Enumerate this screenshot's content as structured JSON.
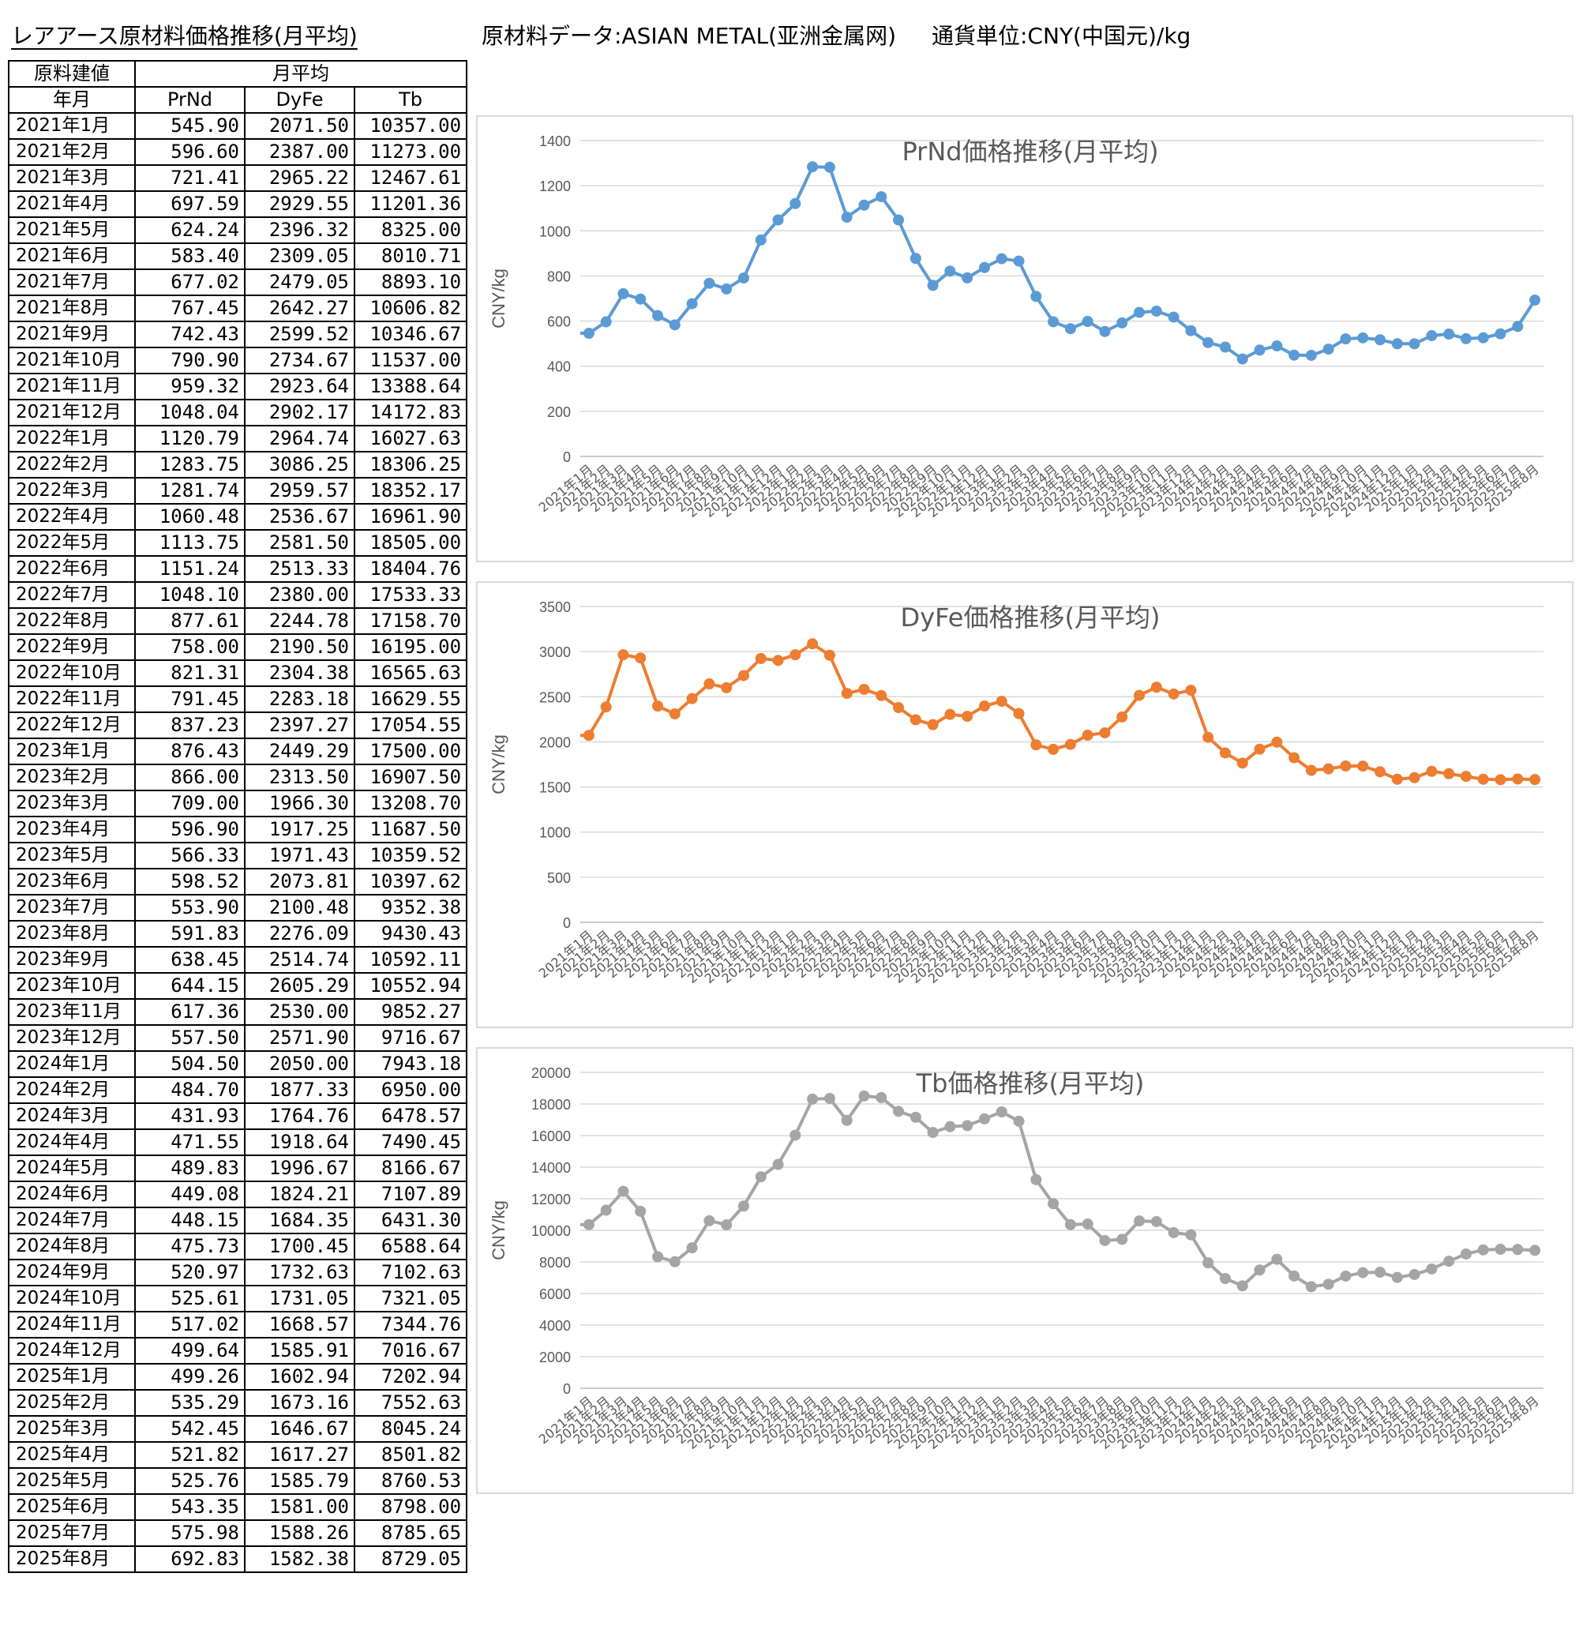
{
  "header": {
    "title": "レアアース原材料価格推移(月平均)",
    "source": "原材料データ:ASIAN METAL(亚洲金属网)",
    "currency": "通貨単位:CNY(中国元)/kg"
  },
  "table": {
    "corner_line1": "原料建値",
    "corner_line2": "年月",
    "group_header": "月平均",
    "columns": [
      "PrNd",
      "DyFe",
      "Tb"
    ],
    "rows": [
      [
        "2021年1月",
        "545.90",
        "2071.50",
        "10357.00"
      ],
      [
        "2021年2月",
        "596.60",
        "2387.00",
        "11273.00"
      ],
      [
        "2021年3月",
        "721.41",
        "2965.22",
        "12467.61"
      ],
      [
        "2021年4月",
        "697.59",
        "2929.55",
        "11201.36"
      ],
      [
        "2021年5月",
        "624.24",
        "2396.32",
        "8325.00"
      ],
      [
        "2021年6月",
        "583.40",
        "2309.05",
        "8010.71"
      ],
      [
        "2021年7月",
        "677.02",
        "2479.05",
        "8893.10"
      ],
      [
        "2021年8月",
        "767.45",
        "2642.27",
        "10606.82"
      ],
      [
        "2021年9月",
        "742.43",
        "2599.52",
        "10346.67"
      ],
      [
        "2021年10月",
        "790.90",
        "2734.67",
        "11537.00"
      ],
      [
        "2021年11月",
        "959.32",
        "2923.64",
        "13388.64"
      ],
      [
        "2021年12月",
        "1048.04",
        "2902.17",
        "14172.83"
      ],
      [
        "2022年1月",
        "1120.79",
        "2964.74",
        "16027.63"
      ],
      [
        "2022年2月",
        "1283.75",
        "3086.25",
        "18306.25"
      ],
      [
        "2022年3月",
        "1281.74",
        "2959.57",
        "18352.17"
      ],
      [
        "2022年4月",
        "1060.48",
        "2536.67",
        "16961.90"
      ],
      [
        "2022年5月",
        "1113.75",
        "2581.50",
        "18505.00"
      ],
      [
        "2022年6月",
        "1151.24",
        "2513.33",
        "18404.76"
      ],
      [
        "2022年7月",
        "1048.10",
        "2380.00",
        "17533.33"
      ],
      [
        "2022年8月",
        "877.61",
        "2244.78",
        "17158.70"
      ],
      [
        "2022年9月",
        "758.00",
        "2190.50",
        "16195.00"
      ],
      [
        "2022年10月",
        "821.31",
        "2304.38",
        "16565.63"
      ],
      [
        "2022年11月",
        "791.45",
        "2283.18",
        "16629.55"
      ],
      [
        "2022年12月",
        "837.23",
        "2397.27",
        "17054.55"
      ],
      [
        "2023年1月",
        "876.43",
        "2449.29",
        "17500.00"
      ],
      [
        "2023年2月",
        "866.00",
        "2313.50",
        "16907.50"
      ],
      [
        "2023年3月",
        "709.00",
        "1966.30",
        "13208.70"
      ],
      [
        "2023年4月",
        "596.90",
        "1917.25",
        "11687.50"
      ],
      [
        "2023年5月",
        "566.33",
        "1971.43",
        "10359.52"
      ],
      [
        "2023年6月",
        "598.52",
        "2073.81",
        "10397.62"
      ],
      [
        "2023年7月",
        "553.90",
        "2100.48",
        "9352.38"
      ],
      [
        "2023年8月",
        "591.83",
        "2276.09",
        "9430.43"
      ],
      [
        "2023年9月",
        "638.45",
        "2514.74",
        "10592.11"
      ],
      [
        "2023年10月",
        "644.15",
        "2605.29",
        "10552.94"
      ],
      [
        "2023年11月",
        "617.36",
        "2530.00",
        "9852.27"
      ],
      [
        "2023年12月",
        "557.50",
        "2571.90",
        "9716.67"
      ],
      [
        "2024年1月",
        "504.50",
        "2050.00",
        "7943.18"
      ],
      [
        "2024年2月",
        "484.70",
        "1877.33",
        "6950.00"
      ],
      [
        "2024年3月",
        "431.93",
        "1764.76",
        "6478.57"
      ],
      [
        "2024年4月",
        "471.55",
        "1918.64",
        "7490.45"
      ],
      [
        "2024年5月",
        "489.83",
        "1996.67",
        "8166.67"
      ],
      [
        "2024年6月",
        "449.08",
        "1824.21",
        "7107.89"
      ],
      [
        "2024年7月",
        "448.15",
        "1684.35",
        "6431.30"
      ],
      [
        "2024年8月",
        "475.73",
        "1700.45",
        "6588.64"
      ],
      [
        "2024年9月",
        "520.97",
        "1732.63",
        "7102.63"
      ],
      [
        "2024年10月",
        "525.61",
        "1731.05",
        "7321.05"
      ],
      [
        "2024年11月",
        "517.02",
        "1668.57",
        "7344.76"
      ],
      [
        "2024年12月",
        "499.64",
        "1585.91",
        "7016.67"
      ],
      [
        "2025年1月",
        "499.26",
        "1602.94",
        "7202.94"
      ],
      [
        "2025年2月",
        "535.29",
        "1673.16",
        "7552.63"
      ],
      [
        "2025年3月",
        "542.45",
        "1646.67",
        "8045.24"
      ],
      [
        "2025年4月",
        "521.82",
        "1617.27",
        "8501.82"
      ],
      [
        "2025年5月",
        "525.76",
        "1585.79",
        "8760.53"
      ],
      [
        "2025年6月",
        "543.35",
        "1581.00",
        "8798.00"
      ],
      [
        "2025年7月",
        "575.98",
        "1588.26",
        "8785.65"
      ],
      [
        "2025年8月",
        "692.83",
        "1582.38",
        "8729.05"
      ]
    ]
  },
  "chart_data": [
    {
      "type": "line",
      "title": "PrNd価格推移(月平均)",
      "ylabel": "CNY/kg",
      "xlabel": "",
      "ylim": [
        0,
        1400
      ],
      "yticks": [
        0,
        200,
        400,
        600,
        800,
        1000,
        1200,
        1400
      ],
      "grid": true,
      "color": "#5B9BD5",
      "categories": [
        "2021年1月",
        "2021年2月",
        "2021年3月",
        "2021年4月",
        "2021年5月",
        "2021年6月",
        "2021年7月",
        "2021年8月",
        "2021年9月",
        "2021年10月",
        "2021年11月",
        "2021年12月",
        "2022年1月",
        "2022年2月",
        "2022年3月",
        "2022年4月",
        "2022年5月",
        "2022年6月",
        "2022年7月",
        "2022年8月",
        "2022年9月",
        "2022年10月",
        "2022年11月",
        "2022年12月",
        "2023年1月",
        "2023年2月",
        "2023年3月",
        "2023年4月",
        "2023年5月",
        "2023年6月",
        "2023年7月",
        "2023年8月",
        "2023年9月",
        "2023年10月",
        "2023年11月",
        "2023年12月",
        "2024年1月",
        "2024年2月",
        "2024年3月",
        "2024年4月",
        "2024年5月",
        "2024年6月",
        "2024年7月",
        "2024年8月",
        "2024年9月",
        "2024年10月",
        "2024年11月",
        "2024年12月",
        "2025年1月",
        "2025年2月",
        "2025年3月",
        "2025年4月",
        "2025年5月",
        "2025年6月",
        "2025年7月",
        "2025年8月"
      ],
      "values": [
        545.9,
        596.6,
        721.41,
        697.59,
        624.24,
        583.4,
        677.02,
        767.45,
        742.43,
        790.9,
        959.32,
        1048.04,
        1120.79,
        1283.75,
        1281.74,
        1060.48,
        1113.75,
        1151.24,
        1048.1,
        877.61,
        758.0,
        821.31,
        791.45,
        837.23,
        876.43,
        866.0,
        709.0,
        596.9,
        566.33,
        598.52,
        553.9,
        591.83,
        638.45,
        644.15,
        617.36,
        557.5,
        504.5,
        484.7,
        431.93,
        471.55,
        489.83,
        449.08,
        448.15,
        475.73,
        520.97,
        525.61,
        517.02,
        499.64,
        499.26,
        535.29,
        542.45,
        521.82,
        525.76,
        543.35,
        575.98,
        692.83
      ]
    },
    {
      "type": "line",
      "title": "DyFe価格推移(月平均)",
      "ylabel": "CNY/kg",
      "xlabel": "",
      "ylim": [
        0,
        3500
      ],
      "yticks": [
        0,
        500,
        1000,
        1500,
        2000,
        2500,
        3000,
        3500
      ],
      "grid": true,
      "color": "#ED7D31",
      "categories": [
        "2021年1月",
        "2021年2月",
        "2021年3月",
        "2021年4月",
        "2021年5月",
        "2021年6月",
        "2021年7月",
        "2021年8月",
        "2021年9月",
        "2021年10月",
        "2021年11月",
        "2021年12月",
        "2022年1月",
        "2022年2月",
        "2022年3月",
        "2022年4月",
        "2022年5月",
        "2022年6月",
        "2022年7月",
        "2022年8月",
        "2022年9月",
        "2022年10月",
        "2022年11月",
        "2022年12月",
        "2023年1月",
        "2023年2月",
        "2023年3月",
        "2023年4月",
        "2023年5月",
        "2023年6月",
        "2023年7月",
        "2023年8月",
        "2023年9月",
        "2023年10月",
        "2023年11月",
        "2023年12月",
        "2024年1月",
        "2024年2月",
        "2024年3月",
        "2024年4月",
        "2024年5月",
        "2024年6月",
        "2024年7月",
        "2024年8月",
        "2024年9月",
        "2024年10月",
        "2024年11月",
        "2024年12月",
        "2025年1月",
        "2025年2月",
        "2025年3月",
        "2025年4月",
        "2025年5月",
        "2025年6月",
        "2025年7月",
        "2025年8月"
      ],
      "values": [
        2071.5,
        2387.0,
        2965.22,
        2929.55,
        2396.32,
        2309.05,
        2479.05,
        2642.27,
        2599.52,
        2734.67,
        2923.64,
        2902.17,
        2964.74,
        3086.25,
        2959.57,
        2536.67,
        2581.5,
        2513.33,
        2380.0,
        2244.78,
        2190.5,
        2304.38,
        2283.18,
        2397.27,
        2449.29,
        2313.5,
        1966.3,
        1917.25,
        1971.43,
        2073.81,
        2100.48,
        2276.09,
        2514.74,
        2605.29,
        2530.0,
        2571.9,
        2050.0,
        1877.33,
        1764.76,
        1918.64,
        1996.67,
        1824.21,
        1684.35,
        1700.45,
        1732.63,
        1731.05,
        1668.57,
        1585.91,
        1602.94,
        1673.16,
        1646.67,
        1617.27,
        1585.79,
        1581.0,
        1588.26,
        1582.38
      ]
    },
    {
      "type": "line",
      "title": "Tb価格推移(月平均)",
      "ylabel": "CNY/kg",
      "xlabel": "",
      "ylim": [
        0,
        20000
      ],
      "yticks": [
        0,
        2000,
        4000,
        6000,
        8000,
        10000,
        12000,
        14000,
        16000,
        18000,
        20000
      ],
      "grid": true,
      "color": "#A5A5A5",
      "categories": [
        "2021年1月",
        "2021年2月",
        "2021年3月",
        "2021年4月",
        "2021年5月",
        "2021年6月",
        "2021年7月",
        "2021年8月",
        "2021年9月",
        "2021年10月",
        "2021年11月",
        "2021年12月",
        "2022年1月",
        "2022年2月",
        "2022年3月",
        "2022年4月",
        "2022年5月",
        "2022年6月",
        "2022年7月",
        "2022年8月",
        "2022年9月",
        "2022年10月",
        "2022年11月",
        "2022年12月",
        "2023年1月",
        "2023年2月",
        "2023年3月",
        "2023年4月",
        "2023年5月",
        "2023年6月",
        "2023年7月",
        "2023年8月",
        "2023年9月",
        "2023年10月",
        "2023年11月",
        "2023年12月",
        "2024年1月",
        "2024年2月",
        "2024年3月",
        "2024年4月",
        "2024年5月",
        "2024年6月",
        "2024年7月",
        "2024年8月",
        "2024年9月",
        "2024年10月",
        "2024年11月",
        "2024年12月",
        "2025年1月",
        "2025年2月",
        "2025年3月",
        "2025年4月",
        "2025年5月",
        "2025年6月",
        "2025年7月",
        "2025年8月"
      ],
      "values": [
        10357.0,
        11273.0,
        12467.61,
        11201.36,
        8325.0,
        8010.71,
        8893.1,
        10606.82,
        10346.67,
        11537.0,
        13388.64,
        14172.83,
        16027.63,
        18306.25,
        18352.17,
        16961.9,
        18505.0,
        18404.76,
        17533.33,
        17158.7,
        16195.0,
        16565.63,
        16629.55,
        17054.55,
        17500.0,
        16907.5,
        13208.7,
        11687.5,
        10359.52,
        10397.62,
        9352.38,
        9430.43,
        10592.11,
        10552.94,
        9852.27,
        9716.67,
        7943.18,
        6950.0,
        6478.57,
        7490.45,
        8166.67,
        7107.89,
        6431.3,
        6588.64,
        7102.63,
        7321.05,
        7344.76,
        7016.67,
        7202.94,
        7552.63,
        8045.24,
        8501.82,
        8760.53,
        8798.0,
        8785.65,
        8729.05
      ]
    }
  ]
}
